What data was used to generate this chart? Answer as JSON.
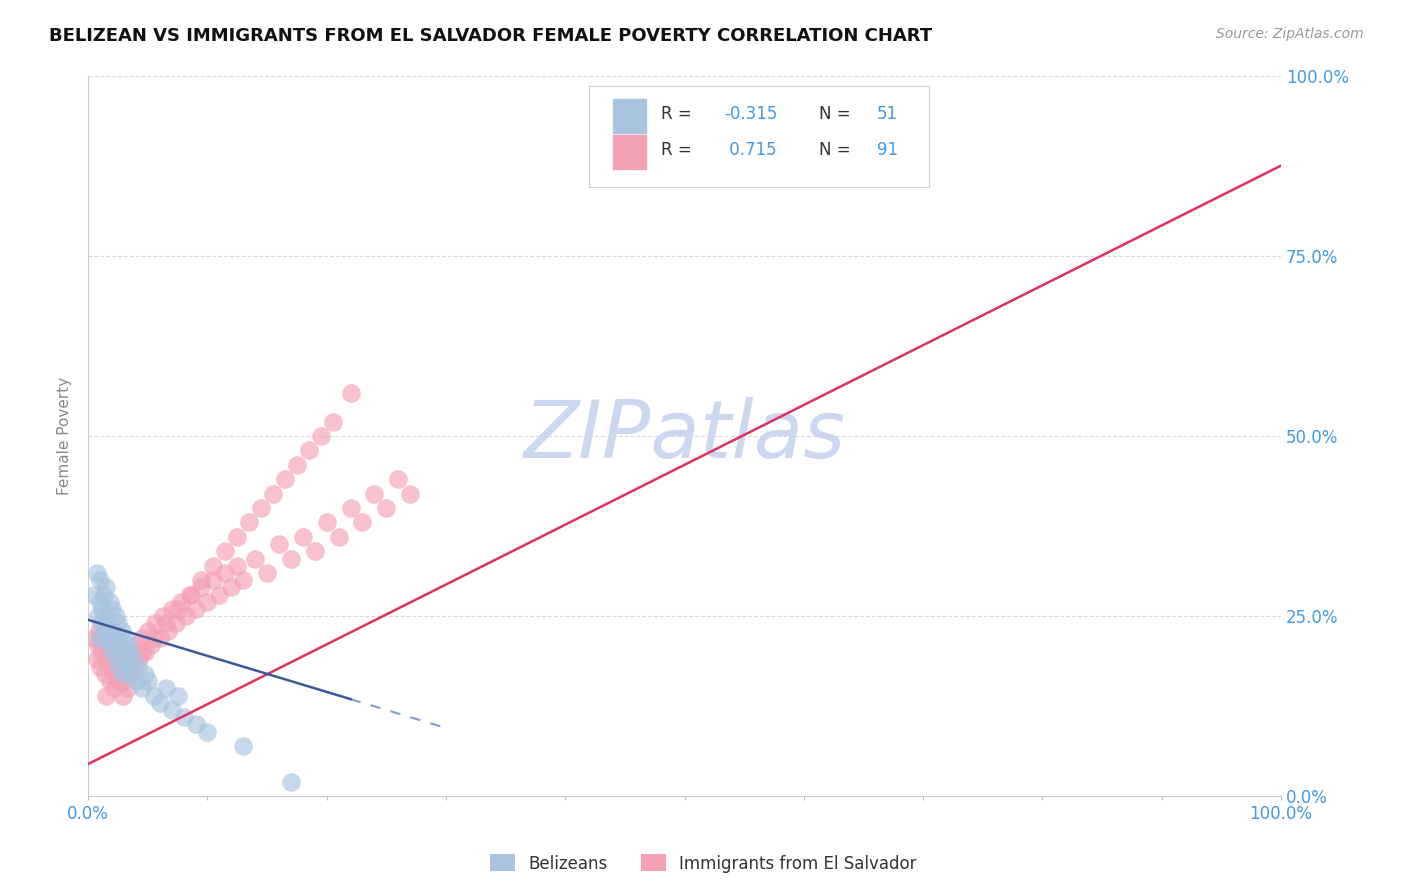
{
  "title": "BELIZEAN VS IMMIGRANTS FROM EL SALVADOR FEMALE POVERTY CORRELATION CHART",
  "source": "Source: ZipAtlas.com",
  "ylabel": "Female Poverty",
  "legend_label_1": "Belizeans",
  "legend_label_2": "Immigrants from El Salvador",
  "R1": -0.315,
  "N1": 51,
  "R2": 0.715,
  "N2": 91,
  "color1": "#a8c4e0",
  "color2": "#f4a0b5",
  "trendline1_color": "#3a5a9a",
  "trendline2_color": "#e03060",
  "watermark_color": "#ccd8f0",
  "title_color": "#111111",
  "tick_color": "#4499dd",
  "background_color": "#ffffff",
  "grid_color": "#d8d8e8",
  "xlim": [
    0.0,
    1.0
  ],
  "ylim": [
    0.0,
    1.0
  ],
  "legend_text_color": "#4499dd",
  "trendline_e_x0": 0.0,
  "trendline_e_y0": 0.045,
  "trendline_e_x1": 1.0,
  "trendline_e_y1": 0.875,
  "trendline_b_x0": 0.0,
  "trendline_b_y0": 0.245,
  "trendline_b_x1": 0.22,
  "trendline_b_y1": 0.135,
  "trendline_b_dash_x0": 0.22,
  "trendline_b_dash_y0": 0.135,
  "trendline_b_dash_x1": 0.3,
  "trendline_b_dash_y1": 0.095,
  "bx": [
    0.005,
    0.007,
    0.008,
    0.009,
    0.01,
    0.01,
    0.011,
    0.012,
    0.013,
    0.014,
    0.015,
    0.015,
    0.016,
    0.017,
    0.018,
    0.019,
    0.02,
    0.02,
    0.021,
    0.022,
    0.023,
    0.024,
    0.025,
    0.025,
    0.026,
    0.027,
    0.028,
    0.029,
    0.03,
    0.031,
    0.032,
    0.033,
    0.034,
    0.035,
    0.036,
    0.038,
    0.04,
    0.042,
    0.045,
    0.048,
    0.05,
    0.055,
    0.06,
    0.065,
    0.07,
    0.075,
    0.08,
    0.09,
    0.1,
    0.13,
    0.17
  ],
  "by": [
    0.28,
    0.31,
    0.25,
    0.22,
    0.27,
    0.3,
    0.24,
    0.26,
    0.28,
    0.23,
    0.25,
    0.29,
    0.22,
    0.24,
    0.27,
    0.21,
    0.23,
    0.26,
    0.2,
    0.22,
    0.25,
    0.19,
    0.22,
    0.24,
    0.18,
    0.21,
    0.23,
    0.17,
    0.2,
    0.22,
    0.19,
    0.21,
    0.18,
    0.2,
    0.17,
    0.19,
    0.16,
    0.18,
    0.15,
    0.17,
    0.16,
    0.14,
    0.13,
    0.15,
    0.12,
    0.14,
    0.11,
    0.1,
    0.09,
    0.07,
    0.02
  ],
  "ex": [
    0.005,
    0.007,
    0.008,
    0.009,
    0.01,
    0.011,
    0.012,
    0.013,
    0.014,
    0.015,
    0.016,
    0.017,
    0.018,
    0.019,
    0.02,
    0.021,
    0.022,
    0.023,
    0.024,
    0.025,
    0.026,
    0.027,
    0.028,
    0.029,
    0.03,
    0.031,
    0.032,
    0.033,
    0.034,
    0.035,
    0.037,
    0.039,
    0.041,
    0.043,
    0.045,
    0.048,
    0.05,
    0.053,
    0.056,
    0.06,
    0.063,
    0.067,
    0.07,
    0.074,
    0.078,
    0.082,
    0.086,
    0.09,
    0.095,
    0.1,
    0.105,
    0.11,
    0.115,
    0.12,
    0.125,
    0.13,
    0.14,
    0.15,
    0.16,
    0.17,
    0.18,
    0.19,
    0.2,
    0.21,
    0.22,
    0.23,
    0.24,
    0.25,
    0.26,
    0.27,
    0.015,
    0.025,
    0.035,
    0.045,
    0.055,
    0.065,
    0.075,
    0.085,
    0.095,
    0.105,
    0.115,
    0.125,
    0.135,
    0.145,
    0.155,
    0.165,
    0.175,
    0.185,
    0.195,
    0.205,
    0.22
  ],
  "ey": [
    0.22,
    0.19,
    0.21,
    0.23,
    0.18,
    0.2,
    0.22,
    0.24,
    0.17,
    0.19,
    0.21,
    0.23,
    0.16,
    0.18,
    0.2,
    0.22,
    0.15,
    0.17,
    0.19,
    0.21,
    0.16,
    0.18,
    0.2,
    0.14,
    0.16,
    0.18,
    0.2,
    0.15,
    0.17,
    0.19,
    0.2,
    0.18,
    0.21,
    0.19,
    0.22,
    0.2,
    0.23,
    0.21,
    0.24,
    0.22,
    0.25,
    0.23,
    0.26,
    0.24,
    0.27,
    0.25,
    0.28,
    0.26,
    0.29,
    0.27,
    0.3,
    0.28,
    0.31,
    0.29,
    0.32,
    0.3,
    0.33,
    0.31,
    0.35,
    0.33,
    0.36,
    0.34,
    0.38,
    0.36,
    0.4,
    0.38,
    0.42,
    0.4,
    0.44,
    0.42,
    0.14,
    0.16,
    0.18,
    0.2,
    0.22,
    0.24,
    0.26,
    0.28,
    0.3,
    0.32,
    0.34,
    0.36,
    0.38,
    0.4,
    0.42,
    0.44,
    0.46,
    0.48,
    0.5,
    0.52,
    0.56
  ]
}
